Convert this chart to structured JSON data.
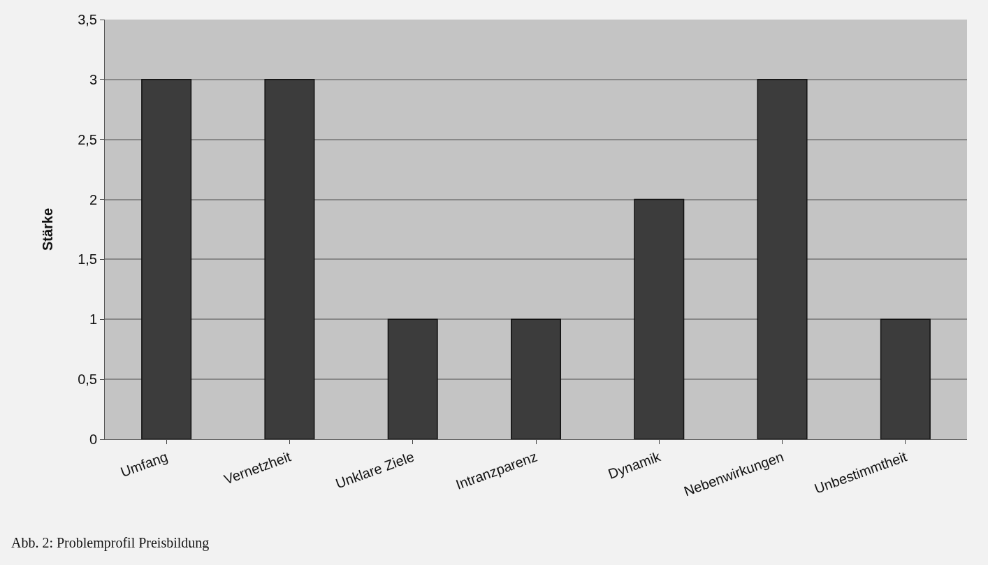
{
  "chart_data": {
    "type": "bar",
    "ylabel": "Stärke",
    "categories": [
      "Umfang",
      "Vernetzheit",
      "Unklare Ziele",
      "Intranzparenz",
      "Dynamik",
      "Nebenwirkungen",
      "Unbestimmtheit"
    ],
    "values": [
      3,
      3,
      1,
      1,
      2,
      3,
      1
    ],
    "color": "#3c3c3c",
    "ylim": [
      0,
      3.5
    ],
    "yticks": [
      0,
      {
        "value": 0.5,
        "label": "0,5"
      },
      1,
      {
        "value": 1.5,
        "label": "1,5"
      },
      2,
      {
        "value": 2.5,
        "label": "2,5"
      },
      3,
      {
        "value": 3.5,
        "label": "3,5"
      }
    ],
    "grid": "y",
    "annotations": [
      "Abb. 2: Problemprofil Preisbildung"
    ]
  }
}
